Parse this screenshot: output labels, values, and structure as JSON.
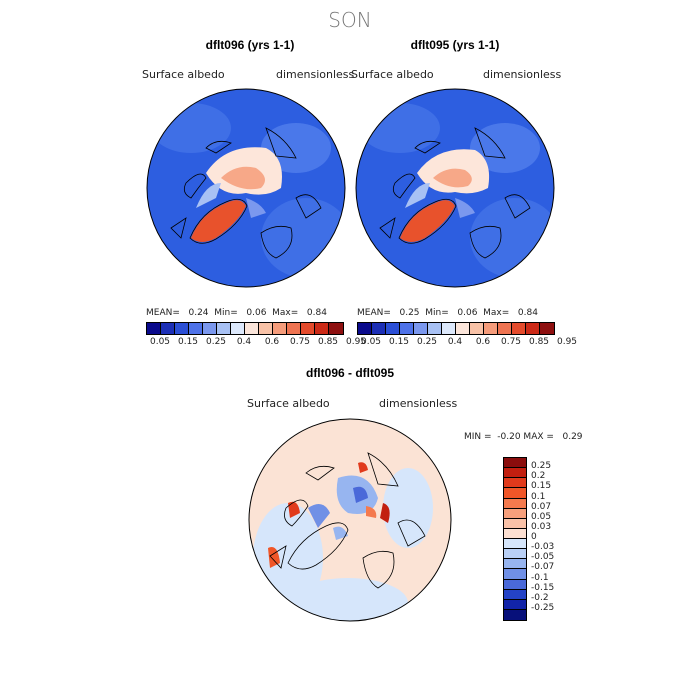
{
  "season": "SON",
  "panels": [
    {
      "title": "dflt096 (yrs 1-1)",
      "var_label": "Surface albedo",
      "units": "dimensionless",
      "mean_label": "MEAN=",
      "mean": "0.24",
      "min_label": "Min=",
      "min": "0.06",
      "max_label": "Max=",
      "max": "0.84"
    },
    {
      "title": "dflt095 (yrs 1-1)",
      "var_label": "Surface albedo",
      "units": "dimensionless",
      "mean_label": "MEAN=",
      "mean": "0.25",
      "min_label": "Min=",
      "min": "0.06",
      "max_label": "Max=",
      "max": "0.84"
    }
  ],
  "abs_colorbar": {
    "ticks": [
      "0.05",
      "0.15",
      "0.25",
      "0.4",
      "0.6",
      "0.75",
      "0.85",
      "0.95"
    ],
    "colors": [
      "#0a0a8c",
      "#1c2fb6",
      "#2b4fd6",
      "#4e72e8",
      "#7b98ee",
      "#a8c1f4",
      "#dce8fb",
      "#fbe5da",
      "#f8c2a7",
      "#f59c7b",
      "#ef7452",
      "#e44b2c",
      "#cc2a17",
      "#8e1010"
    ]
  },
  "diff": {
    "title": "dflt096 - dflt095",
    "var_label": "Surface albedo",
    "units": "dimensionless",
    "stats": "MIN =  -0.20 MAX =   0.29",
    "colorbar_labels": [
      "0.25",
      "0.2",
      "0.15",
      "0.1",
      "0.07",
      "0.05",
      "0.03",
      "0",
      "-0.03",
      "-0.05",
      "-0.07",
      "-0.1",
      "-0.15",
      "-0.2",
      "-0.25"
    ],
    "colorbar_colors": [
      "#8a0d0d",
      "#c21f10",
      "#e13a1c",
      "#f05628",
      "#f47a4e",
      "#f7a07c",
      "#fac2a8",
      "#fde0d2",
      "#d6e6fb",
      "#b9d0f6",
      "#97b5f0",
      "#7090e6",
      "#4a69d9",
      "#2443c6",
      "#1224a8",
      "#07107a"
    ]
  },
  "colors": {
    "ocean_blue": "#2d5ee0",
    "ice_light": "#fde6da",
    "ice_mid": "#f7a888",
    "greenland": "#e8522c",
    "diff_bg": "#fbe3d5",
    "diff_blue": "#c8dcf8"
  }
}
